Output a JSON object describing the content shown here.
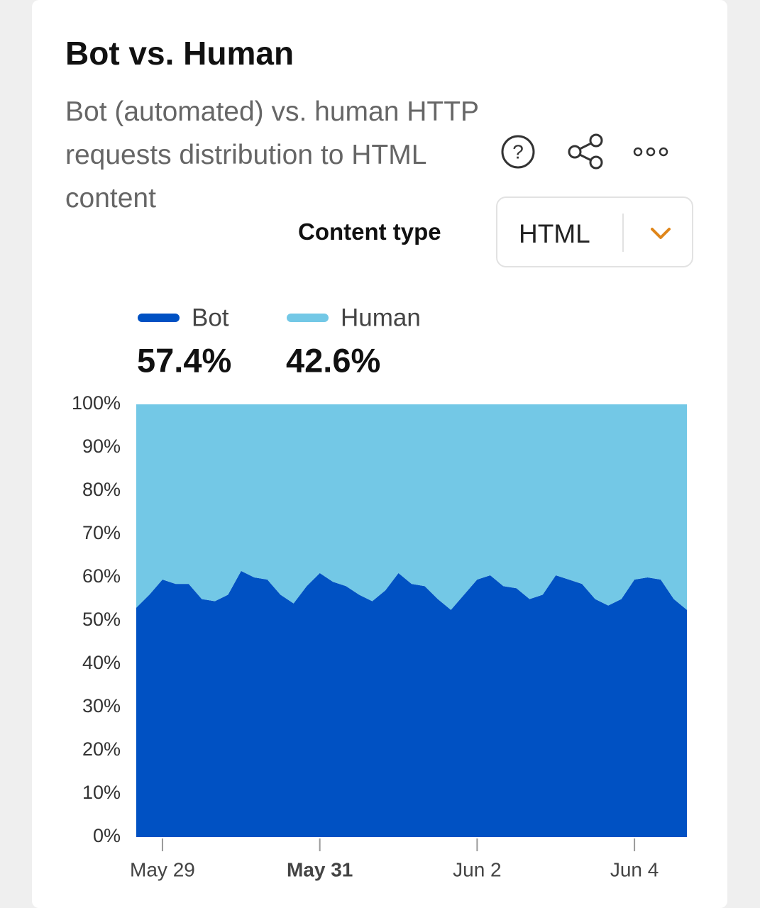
{
  "header": {
    "title": "Bot vs. Human",
    "subtitle": "Bot (automated) vs. human HTTP requests distribution to HTML content"
  },
  "filter": {
    "label": "Content type",
    "value": "HTML"
  },
  "chart_data": {
    "type": "area",
    "stacked": true,
    "categories": [
      null,
      null,
      "May 29",
      null,
      null,
      null,
      null,
      null,
      null,
      null,
      null,
      null,
      null,
      null,
      "May 31",
      null,
      null,
      null,
      null,
      null,
      null,
      null,
      null,
      null,
      null,
      null,
      "Jun 2",
      null,
      null,
      null,
      null,
      null,
      null,
      null,
      null,
      null,
      null,
      null,
      "Jun 4",
      null,
      null,
      null,
      null
    ],
    "emphasized_category": 14,
    "series": [
      {
        "name": "Bot",
        "color": "#0051c3",
        "summary": "57.4%",
        "values": [
          53,
          56,
          59.5,
          58.5,
          58.5,
          55,
          54.5,
          56,
          61.5,
          60,
          59.5,
          56,
          54,
          58,
          61,
          59,
          58,
          56,
          54.5,
          57,
          61,
          58.5,
          58,
          55,
          52.5,
          56,
          59.5,
          60.5,
          58,
          57.5,
          55,
          56,
          60.5,
          59.5,
          58.5,
          55,
          53.5,
          55,
          59.5,
          60,
          59.5,
          55,
          52.5
        ]
      },
      {
        "name": "Human",
        "color": "#73c8e6",
        "summary": "42.6%",
        "values": [
          47,
          44,
          40.5,
          41.5,
          41.5,
          45,
          45.5,
          44,
          38.5,
          40,
          40.5,
          44,
          46,
          42,
          39,
          41,
          42,
          44,
          45.5,
          43,
          39,
          41.5,
          42,
          45,
          47.5,
          44,
          40.5,
          39.5,
          42,
          42.5,
          45,
          44,
          39.5,
          40.5,
          41.5,
          45,
          46.5,
          45,
          40.5,
          40,
          40.5,
          45,
          47.5
        ]
      }
    ],
    "ylim": [
      0,
      100
    ],
    "yticks": [
      {
        "value": 0,
        "label": "0%"
      },
      {
        "value": 10,
        "label": "10%"
      },
      {
        "value": 20,
        "label": "20%"
      },
      {
        "value": 30,
        "label": "30%"
      },
      {
        "value": 40,
        "label": "40%"
      },
      {
        "value": 50,
        "label": "50%"
      },
      {
        "value": 60,
        "label": "60%"
      },
      {
        "value": 70,
        "label": "70%"
      },
      {
        "value": 80,
        "label": "80%"
      },
      {
        "value": 90,
        "label": "90%"
      },
      {
        "value": 100,
        "label": "100%"
      }
    ]
  }
}
